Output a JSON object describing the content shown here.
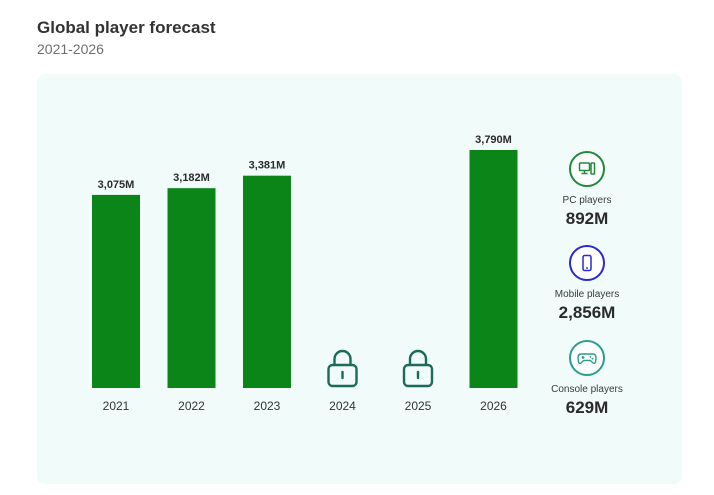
{
  "header": {
    "title": "Global player forecast",
    "subtitle": "2021-2026"
  },
  "chart_data": {
    "type": "bar",
    "categories": [
      "2021",
      "2022",
      "2023",
      "2024",
      "2025",
      "2026"
    ],
    "values": [
      3075,
      3182,
      3381,
      null,
      null,
      3790
    ],
    "value_labels": [
      "3,075M",
      "3,182M",
      "3,381M",
      "",
      "",
      "3,790M"
    ],
    "locked": [
      false,
      false,
      false,
      true,
      true,
      false
    ],
    "unit": "M",
    "bar_color": "#0b8418",
    "lock_color": "#1a6b57",
    "grid": false
  },
  "stats": [
    {
      "label": "PC players",
      "value": "892M",
      "icon": "pc-icon",
      "color": "#1e8a3a"
    },
    {
      "label": "Mobile players",
      "value": "2,856M",
      "icon": "mobile-icon",
      "color": "#2a2ad0"
    },
    {
      "label": "Console players",
      "value": "629M",
      "icon": "gamepad-icon",
      "color": "#2a9e8c"
    }
  ]
}
